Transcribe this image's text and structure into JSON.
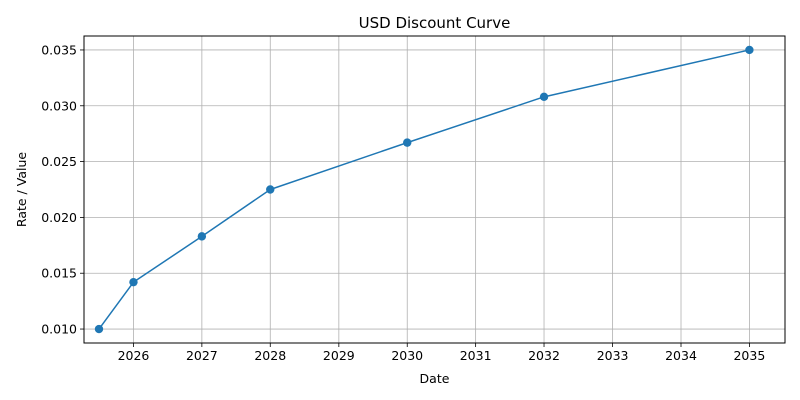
{
  "chart_data": {
    "type": "line",
    "title": "USD Discount Curve",
    "xlabel": "Date",
    "ylabel": "Rate / Value",
    "grid": true,
    "legend": "none",
    "x_ticks": [
      "2026",
      "2027",
      "2028",
      "2029",
      "2030",
      "2031",
      "2032",
      "2033",
      "2034",
      "2035"
    ],
    "y_ticks": [
      "0.010",
      "0.015",
      "0.020",
      "0.025",
      "0.030",
      "0.035"
    ],
    "xlim": [
      "2025-04-12",
      "2035-07-10"
    ],
    "ylim": [
      0.00875,
      0.03625
    ],
    "series": [
      {
        "color": "#1f77b4",
        "marker": "circle",
        "points": [
          {
            "x": "2025-07-01",
            "y": 0.01
          },
          {
            "x": "2026-01-01",
            "y": 0.0142
          },
          {
            "x": "2027-01-01",
            "y": 0.0183
          },
          {
            "x": "2028-01-01",
            "y": 0.0225
          },
          {
            "x": "2030-01-01",
            "y": 0.0267
          },
          {
            "x": "2032-01-01",
            "y": 0.0308
          },
          {
            "x": "2035-01-01",
            "y": 0.035
          }
        ]
      }
    ],
    "colors": {
      "grid": "#b0b0b0",
      "axes": "#000000"
    }
  }
}
